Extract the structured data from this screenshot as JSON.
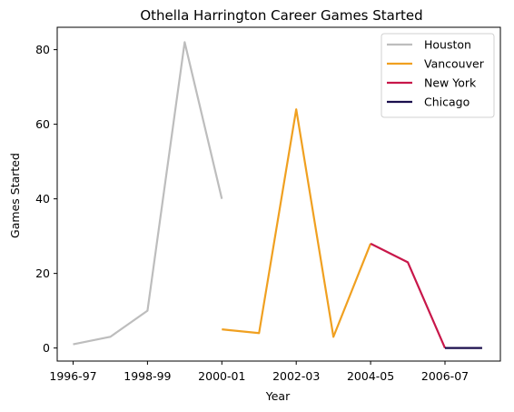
{
  "chart_data": {
    "type": "line",
    "title": "Othella Harrington Career Games Started",
    "xlabel": "Year",
    "ylabel": "Games Started",
    "x_tick_labels": [
      "1996-97",
      "1998-99",
      "2000-01",
      "2002-03",
      "2004-05",
      "2006-07"
    ],
    "y_ticks": [
      0,
      20,
      40,
      60,
      80
    ],
    "ylim": [
      -3.5,
      86
    ],
    "grid": false,
    "legend_position": "top-right",
    "series": [
      {
        "name": "Houston",
        "color": "#bdbdbd",
        "points": [
          {
            "x": "1996-97",
            "y": 1
          },
          {
            "x": "1997-98",
            "y": 3
          },
          {
            "x": "1998-99",
            "y": 10
          },
          {
            "x": "1999-00",
            "y": 82
          },
          {
            "x": "2000-01",
            "y": 40
          }
        ]
      },
      {
        "name": "Vancouver",
        "color": "#f0a020",
        "points": [
          {
            "x": "2000-01",
            "y": 5
          },
          {
            "x": "2001-02",
            "y": 4
          },
          {
            "x": "2002-03",
            "y": 64
          },
          {
            "x": "2003-04",
            "y": 3
          },
          {
            "x": "2004-05",
            "y": 28
          }
        ]
      },
      {
        "name": "New York",
        "color": "#c8174a",
        "points": [
          {
            "x": "2004-05",
            "y": 28
          },
          {
            "x": "2005-06",
            "y": 23
          },
          {
            "x": "2006-07",
            "y": 0
          }
        ]
      },
      {
        "name": "Chicago",
        "color": "#1b0f4d",
        "points": [
          {
            "x": "2006-07",
            "y": 0
          },
          {
            "x": "2007-08",
            "y": 0
          }
        ]
      }
    ]
  }
}
